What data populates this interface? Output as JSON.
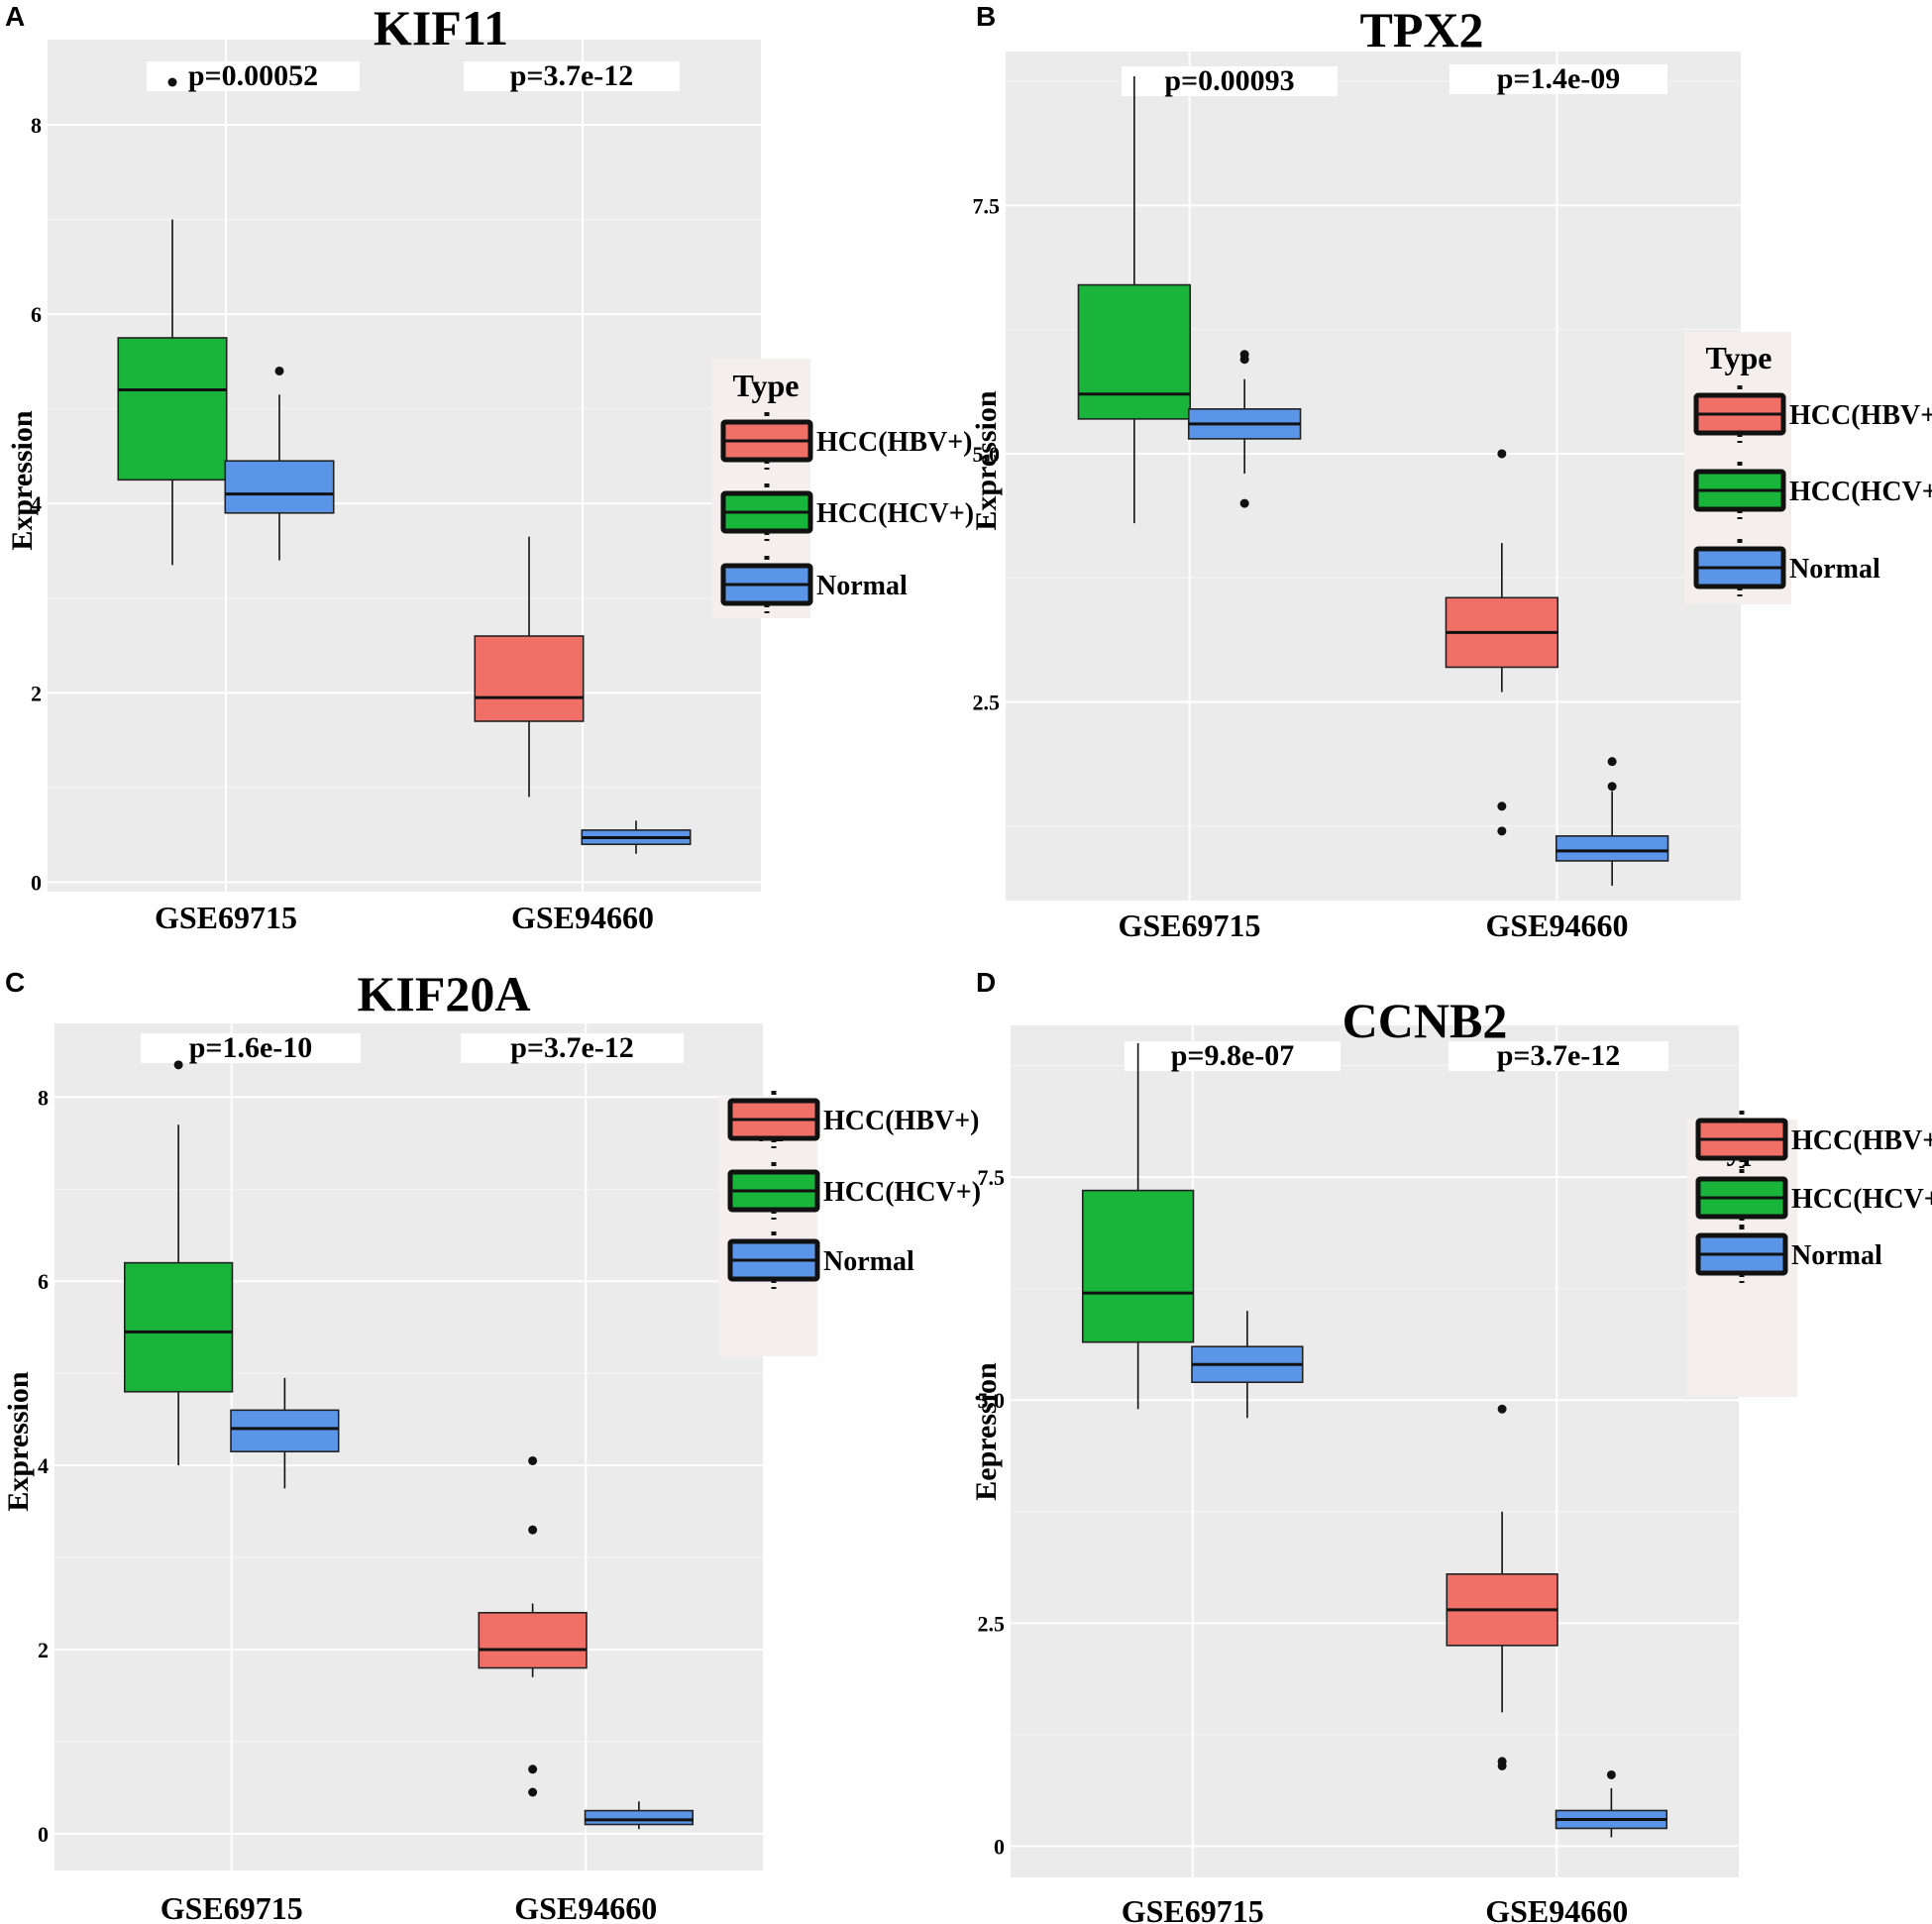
{
  "chart_data": [
    {
      "panel": "A",
      "type": "box",
      "title": "KIF11",
      "ylabel": "Expression",
      "xlabel": "",
      "ylim": [
        -0.1,
        8.9
      ],
      "yticks": [
        0,
        2,
        4,
        6,
        8
      ],
      "ytick_labels": [
        "0",
        "2",
        "4",
        "6",
        "8"
      ],
      "categories": [
        "GSE69715",
        "GSE94660"
      ],
      "pvalues": [
        "p=0.00052",
        "p=3.7e-12"
      ],
      "legend": {
        "title": "Type",
        "entries": [
          "HCC(HBV+)",
          "HCC(HCV+)",
          "Normal"
        ]
      },
      "boxes": [
        {
          "category": "GSE69715",
          "group": "HCC(HCV+)",
          "min": 3.35,
          "q1": 4.25,
          "median": 5.2,
          "q3": 5.75,
          "max": 7.0,
          "outliers": [
            8.45
          ]
        },
        {
          "category": "GSE69715",
          "group": "Normal",
          "min": 3.4,
          "q1": 3.9,
          "median": 4.1,
          "q3": 4.45,
          "max": 5.15,
          "outliers": [
            5.4
          ]
        },
        {
          "category": "GSE94660",
          "group": "HCC(HBV+)",
          "min": 0.9,
          "q1": 1.7,
          "median": 1.95,
          "q3": 2.6,
          "max": 3.65,
          "outliers": []
        },
        {
          "category": "GSE94660",
          "group": "Normal",
          "min": 0.3,
          "q1": 0.4,
          "median": 0.47,
          "q3": 0.55,
          "max": 0.65,
          "outliers": []
        }
      ]
    },
    {
      "panel": "B",
      "type": "box",
      "title": "TPX2",
      "ylabel": "Expression",
      "xlabel": "",
      "ylim": [
        0.5,
        9.05
      ],
      "yticks": [
        2.5,
        5.0,
        7.5
      ],
      "ytick_labels": [
        "2.5",
        "5.0",
        "7.5"
      ],
      "categories": [
        "GSE69715",
        "GSE94660"
      ],
      "pvalues": [
        "p=0.00093",
        "p=1.4e-09"
      ],
      "legend": {
        "title": "Type",
        "entries": [
          "HCC(HBV+)",
          "HCC(HCV+)",
          "Normal"
        ]
      },
      "boxes": [
        {
          "category": "GSE69715",
          "group": "HCC(HCV+)",
          "min": 4.3,
          "q1": 5.35,
          "median": 5.6,
          "q3": 6.7,
          "max": 8.8,
          "outliers": []
        },
        {
          "category": "GSE69715",
          "group": "Normal",
          "min": 4.8,
          "q1": 5.15,
          "median": 5.3,
          "q3": 5.45,
          "max": 5.75,
          "outliers": [
            5.95,
            6.0,
            4.5
          ]
        },
        {
          "category": "GSE94660",
          "group": "HCC(HBV+)",
          "min": 2.6,
          "q1": 2.85,
          "median": 3.2,
          "q3": 3.55,
          "max": 4.1,
          "outliers": [
            5.0,
            1.45,
            1.2
          ]
        },
        {
          "category": "GSE94660",
          "group": "Normal",
          "min": 0.65,
          "q1": 0.9,
          "median": 1.0,
          "q3": 1.15,
          "max": 1.6,
          "outliers": [
            1.65,
            1.9
          ]
        }
      ]
    },
    {
      "panel": "C",
      "type": "box",
      "title": "KIF20A",
      "ylabel": "Expression",
      "xlabel": "",
      "ylim": [
        -0.4,
        8.8
      ],
      "yticks": [
        0,
        2,
        4,
        6,
        8
      ],
      "ytick_labels": [
        "0",
        "2",
        "4",
        "6",
        "8"
      ],
      "categories": [
        "GSE69715",
        "GSE94660"
      ],
      "pvalues": [
        "p=1.6e-10",
        "p=3.7e-12"
      ],
      "legend": {
        "title": "Type",
        "entries": [
          "HCC(HBV+)",
          "HCC(HCV+)",
          "Normal"
        ]
      },
      "boxes": [
        {
          "category": "GSE69715",
          "group": "HCC(HCV+)",
          "min": 4.0,
          "q1": 4.8,
          "median": 5.45,
          "q3": 6.2,
          "max": 7.7,
          "outliers": [
            8.35
          ]
        },
        {
          "category": "GSE69715",
          "group": "Normal",
          "min": 3.75,
          "q1": 4.15,
          "median": 4.4,
          "q3": 4.6,
          "max": 4.95,
          "outliers": []
        },
        {
          "category": "GSE94660",
          "group": "HCC(HBV+)",
          "min": 1.7,
          "q1": 1.8,
          "median": 2.0,
          "q3": 2.4,
          "max": 2.5,
          "outliers": [
            4.05,
            3.3,
            0.7,
            0.45
          ]
        },
        {
          "category": "GSE94660",
          "group": "Normal",
          "min": 0.05,
          "q1": 0.1,
          "median": 0.15,
          "q3": 0.25,
          "max": 0.35,
          "outliers": []
        }
      ]
    },
    {
      "panel": "D",
      "type": "box",
      "title": "CCNB2",
      "ylabel": "Eepression",
      "xlabel": "",
      "ylim": [
        -0.35,
        9.2
      ],
      "yticks": [
        0,
        2.5,
        5.0,
        7.5
      ],
      "ytick_labels": [
        "0",
        "2.5",
        "5.0",
        "7.5"
      ],
      "categories": [
        "GSE69715",
        "GSE94660"
      ],
      "pvalues": [
        "p=9.8e-07",
        "p=3.7e-12"
      ],
      "legend": {
        "title": "Type",
        "entries": [
          "HCC(HBV+)",
          "HCC(HCV+)",
          "Normal"
        ]
      },
      "boxes": [
        {
          "category": "GSE69715",
          "group": "HCC(HCV+)",
          "min": 4.9,
          "q1": 5.65,
          "median": 6.2,
          "q3": 7.35,
          "max": 9.0,
          "outliers": []
        },
        {
          "category": "GSE69715",
          "group": "Normal",
          "min": 4.8,
          "q1": 5.2,
          "median": 5.4,
          "q3": 5.6,
          "max": 6.0,
          "outliers": []
        },
        {
          "category": "GSE94660",
          "group": "HCC(HBV+)",
          "min": 1.5,
          "q1": 2.25,
          "median": 2.65,
          "q3": 3.05,
          "max": 3.75,
          "outliers": [
            4.9,
            0.95,
            0.9
          ]
        },
        {
          "category": "GSE94660",
          "group": "Normal",
          "min": 0.1,
          "q1": 0.2,
          "median": 0.3,
          "q3": 0.4,
          "max": 0.65,
          "outliers": [
            0.8
          ]
        }
      ]
    }
  ],
  "colors": {
    "HCC(HBV+)": "#f07068",
    "HCC(HCV+)": "#19b43a",
    "Normal": "#5b95e8",
    "panel_background": "#ebebeb",
    "grid": "#ffffff"
  }
}
